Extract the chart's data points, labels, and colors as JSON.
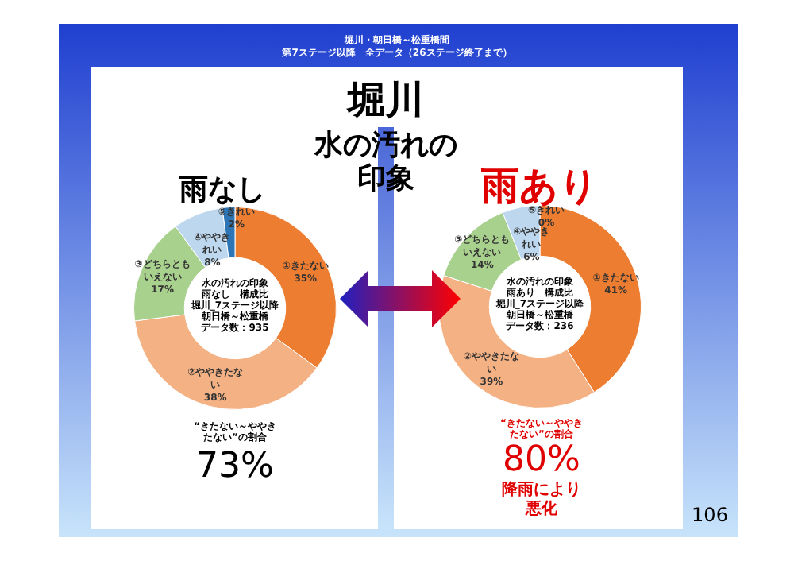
{
  "chart_data": [
    {
      "type": "donut",
      "title": "雨なし",
      "categories": [
        "①きたない",
        "②ややきたない",
        "③どちらともいえない",
        "④ややきれい",
        "⑤きれい"
      ],
      "values": [
        35,
        38,
        17,
        8,
        2
      ],
      "colors": [
        "#ed7d31",
        "#f4b183",
        "#a9d18e",
        "#bdd7ee",
        "#2e75b6"
      ],
      "value_labels": [
        "35%",
        "38%",
        "17%",
        "8%",
        "2%"
      ],
      "annotations": [
        "堀川・朝日橋～松重橋間",
        "第7ステージ以降　全データ（26ステージ終了まで）",
        "堀川",
        "水の汚れの印象",
        "水の汚れの印象",
        "雨なし　構成比",
        "堀川_7ステージ以降",
        "朝日橋～松重橋",
        "データ数：935",
        "“きたない～ややきたない”の割合",
        "73%",
        "106"
      ]
    },
    {
      "type": "donut",
      "title": "雨あり",
      "categories": [
        "①きたない",
        "②ややきたない",
        "③どちらともいえない",
        "④ややきれい",
        "⑤きれい"
      ],
      "values": [
        41,
        39,
        14,
        6,
        0
      ],
      "colors": [
        "#ed7d31",
        "#f4b183",
        "#a9d18e",
        "#bdd7ee",
        "#2e75b6"
      ],
      "value_labels": [
        "41%",
        "39%",
        "14%",
        "6%",
        "0%"
      ],
      "annotations": [
        "水の汚れの印象",
        "雨あり　構成比",
        "堀川_7ステージ以降",
        "朝日橋～松重橋",
        "データ数：236",
        "“きたない～ややきたない”の割合",
        "80%",
        "降雨により悪化"
      ]
    }
  ]
}
